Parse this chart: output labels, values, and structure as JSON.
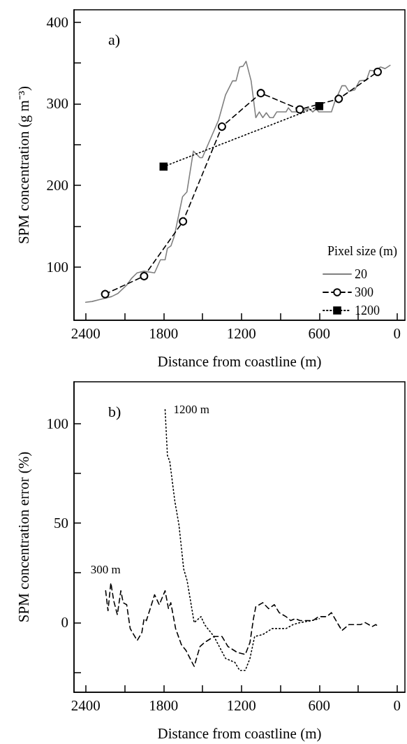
{
  "chart_data": [
    {
      "type": "line",
      "title": "a)",
      "xlabel": "Distance from coastline (m)",
      "ylabel": "SPM concentration (g m⁻³)",
      "legend_title": "Pixel size (m)",
      "legend": "bottom right",
      "grid": false,
      "xlim": [
        2490,
        -60
      ],
      "xticks": [
        2400,
        {
          "value": 2100,
          "label": null
        },
        1800,
        {
          "value": 1500,
          "label": null
        },
        1200,
        {
          "value": 900,
          "label": null
        },
        600,
        {
          "value": 300,
          "label": null
        },
        0
      ],
      "ylim": [
        35,
        415
      ],
      "yticks": [
        100,
        {
          "value": 150,
          "label": null
        },
        200,
        {
          "value": 250,
          "label": null
        },
        300,
        {
          "value": 350,
          "label": null
        },
        400
      ],
      "series": [
        {
          "name": "20",
          "color": "#808080",
          "line_style": "solid",
          "marker": "none",
          "x": [
            2400,
            2350,
            2300,
            2250,
            2200,
            2150,
            2084,
            2048,
            2004,
            1950,
            1869,
            1824,
            1788,
            1770,
            1743,
            1717,
            1654,
            1620,
            1570,
            1519,
            1501,
            1376,
            1322,
            1268,
            1241,
            1214,
            1187,
            1164,
            1125,
            1089,
            1062,
            1035,
            1008,
            981,
            955,
            928,
            856,
            838,
            812,
            767,
            677,
            650,
            623,
            605,
            506,
            479,
            425,
            398,
            371,
            326,
            290,
            236,
            210,
            174,
            129,
            93,
            54
          ],
          "values": [
            57,
            58,
            60,
            62,
            64,
            68,
            78,
            86,
            93,
            95,
            93,
            109,
            109,
            123,
            126,
            138,
            186,
            192,
            242,
            234,
            234,
            280,
            311,
            328,
            328,
            345,
            346,
            352,
            328,
            283,
            290,
            283,
            289,
            283,
            283,
            290,
            290,
            295,
            290,
            290,
            294,
            290,
            294,
            290,
            290,
            303,
            322,
            322,
            315,
            317,
            328,
            329,
            341,
            340,
            345,
            343,
            347
          ]
        },
        {
          "name": "300",
          "color": "#000000",
          "line_style": "dashed",
          "marker": "circle",
          "x": [
            2250,
            1950,
            1650,
            1350,
            1050,
            750,
            450,
            150
          ],
          "values": [
            67,
            89,
            156,
            272,
            313,
            293,
            306,
            339
          ]
        },
        {
          "name": "1200",
          "color": "#000000",
          "line_style": "dotted",
          "marker": "square",
          "x": [
            1800,
            600
          ],
          "values": [
            223,
            297
          ]
        }
      ]
    },
    {
      "type": "line",
      "title": "b)",
      "xlabel": "Distance from coastline (m)",
      "ylabel": "SPM concentration error (%)",
      "grid": false,
      "xlim": [
        2490,
        -60
      ],
      "xticks": [
        2400,
        {
          "value": 2100,
          "label": null
        },
        1800,
        {
          "value": 1500,
          "label": null
        },
        1200,
        {
          "value": 900,
          "label": null
        },
        600,
        {
          "value": 300,
          "label": null
        },
        0
      ],
      "ylim": [
        -35,
        121
      ],
      "yticks": [
        {
          "value": -25,
          "label": null
        },
        0,
        {
          "value": 25,
          "label": null
        },
        50,
        {
          "value": 75,
          "label": null
        },
        100
      ],
      "series": [
        {
          "name": "300 m",
          "color": "#000000",
          "line_style": "dashed",
          "marker": "none",
          "x": [
            2246,
            2228,
            2206,
            2184,
            2156,
            2129,
            2111,
            2084,
            2057,
            2048,
            2003,
            1967,
            1950,
            1932,
            1869,
            1833,
            1788,
            1762,
            1744,
            1707,
            1663,
            1627,
            1564,
            1519,
            1484,
            1411,
            1349,
            1304,
            1232,
            1170,
            1134,
            1107,
            1089,
            1035,
            990,
            946,
            909,
            856,
            820,
            784,
            749,
            695,
            650,
            605,
            542,
            506,
            462,
            425,
            371,
            318,
            282,
            246,
            192,
            165,
            142
          ],
          "values": [
            16,
            6,
            20,
            11,
            4,
            16,
            10,
            9,
            -3,
            -4,
            -9,
            -5,
            2,
            1,
            14,
            9,
            16,
            7,
            10,
            -3,
            -11,
            -14,
            -22,
            -12,
            -10,
            -7,
            -7,
            -12,
            -15,
            -16,
            -10,
            2,
            8,
            10,
            7,
            9,
            5,
            3,
            1,
            2,
            1,
            1,
            1,
            3,
            3,
            5,
            0,
            -4,
            -1,
            -1,
            -1,
            0,
            -2,
            -1,
            -2
          ]
        },
        {
          "name": "1200 m",
          "color": "#000000",
          "line_style": "dotted",
          "marker": "none",
          "x": [
            1788,
            1770,
            1752,
            1713,
            1681,
            1645,
            1618,
            1564,
            1511,
            1484,
            1411,
            1322,
            1250,
            1214,
            1170,
            1134,
            1098,
            1035,
            963,
            856,
            802,
            749,
            659,
            600
          ],
          "values": [
            107,
            84,
            81,
            61,
            49,
            27,
            21,
            0,
            3,
            -1,
            -7,
            -18,
            -20,
            -24,
            -24,
            -18,
            -7,
            -6,
            -3,
            -3,
            -1,
            0,
            1,
            2
          ]
        }
      ]
    }
  ]
}
